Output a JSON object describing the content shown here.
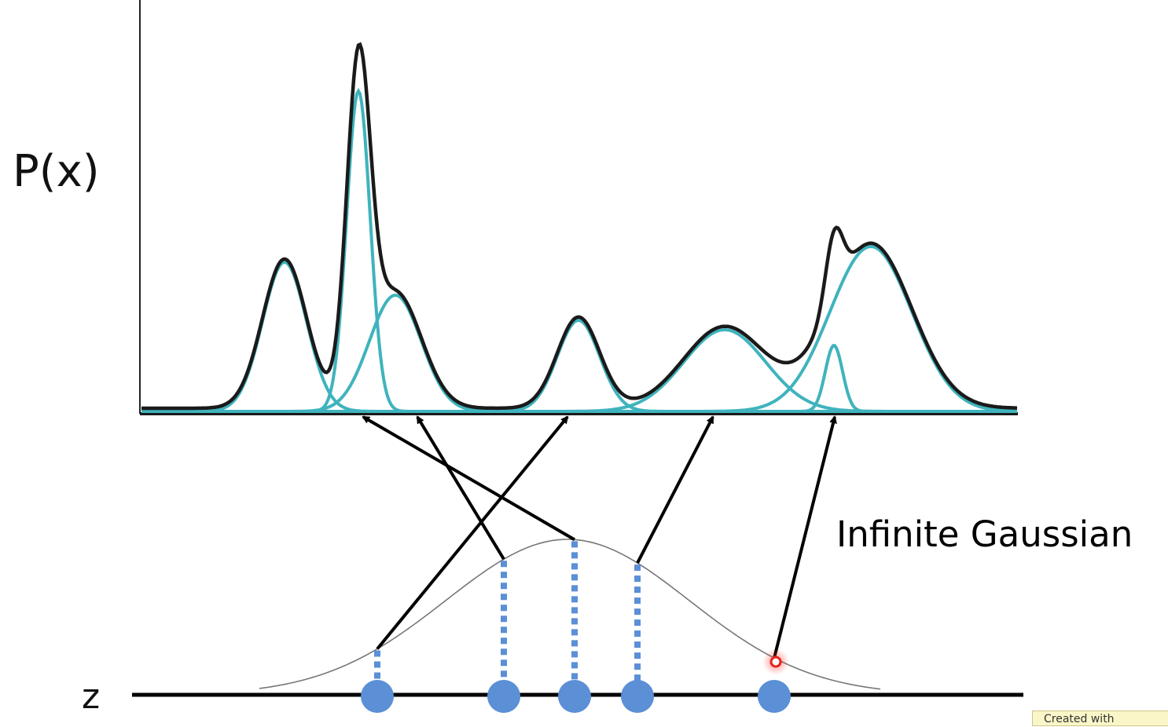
{
  "labels": {
    "y_axis": "P(x)",
    "z_axis": "z",
    "annotation": "Infinite Gaussian"
  },
  "watermark": "Created with",
  "colors": {
    "mixture_curve": "#1a1a1a",
    "component_curve": "#3fb3bd",
    "prior_curve": "#777777",
    "sample_point": "#5b8fd6",
    "arrow": "#000000",
    "cursor": "#e8231f"
  },
  "mixture_components": [
    {
      "mu": 362,
      "sigma": 28,
      "height": 190
    },
    {
      "mu": 456,
      "sigma": 15,
      "height": 408
    },
    {
      "mu": 503,
      "sigma": 33,
      "height": 148
    },
    {
      "mu": 736,
      "sigma": 27,
      "height": 116
    },
    {
      "mu": 922,
      "sigma": 52,
      "height": 104
    },
    {
      "mu": 1061,
      "sigma": 11,
      "height": 84
    },
    {
      "mu": 1108,
      "sigma": 52,
      "height": 210
    }
  ],
  "prior": {
    "mu": 722,
    "sigma": 155,
    "height": 198
  },
  "samples": [
    {
      "z": 480,
      "target_x": 722
    },
    {
      "z": 641,
      "target_x": 531
    },
    {
      "z": 731,
      "target_x": 462
    },
    {
      "z": 811,
      "target_x": 907
    },
    {
      "z": 985,
      "target_x": 1062
    }
  ]
}
